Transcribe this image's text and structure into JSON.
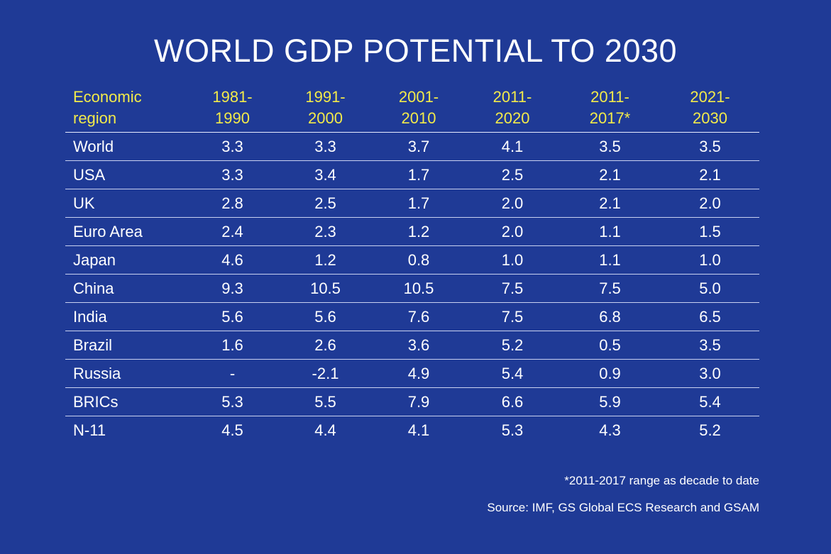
{
  "chart_data": {
    "type": "table",
    "title": "WORLD GDP POTENTIAL TO 2030",
    "columns": [
      {
        "line1": "Economic",
        "line2": "region"
      },
      {
        "line1": "1981-",
        "line2": "1990"
      },
      {
        "line1": "1991-",
        "line2": "2000"
      },
      {
        "line1": "2001-",
        "line2": "2010"
      },
      {
        "line1": "2011-",
        "line2": "2020"
      },
      {
        "line1": "2011-",
        "line2": "2017*"
      },
      {
        "line1": "2021-",
        "line2": "2030"
      }
    ],
    "rows": [
      {
        "region": "World",
        "values": [
          "3.3",
          "3.3",
          "3.7",
          "4.1",
          "3.5",
          "3.5"
        ]
      },
      {
        "region": "USA",
        "values": [
          "3.3",
          "3.4",
          "1.7",
          "2.5",
          "2.1",
          "2.1"
        ]
      },
      {
        "region": "UK",
        "values": [
          "2.8",
          "2.5",
          "1.7",
          "2.0",
          "2.1",
          "2.0"
        ]
      },
      {
        "region": "Euro Area",
        "values": [
          "2.4",
          "2.3",
          "1.2",
          "2.0",
          "1.1",
          "1.5"
        ]
      },
      {
        "region": "Japan",
        "values": [
          "4.6",
          "1.2",
          "0.8",
          "1.0",
          "1.1",
          "1.0"
        ]
      },
      {
        "region": "China",
        "values": [
          "9.3",
          "10.5",
          "10.5",
          "7.5",
          "7.5",
          "5.0"
        ]
      },
      {
        "region": "India",
        "values": [
          "5.6",
          "5.6",
          "7.6",
          "7.5",
          "6.8",
          "6.5"
        ]
      },
      {
        "region": "Brazil",
        "values": [
          "1.6",
          "2.6",
          "3.6",
          "5.2",
          "0.5",
          "3.5"
        ]
      },
      {
        "region": "Russia",
        "values": [
          "-",
          "-2.1",
          "4.9",
          "5.4",
          "0.9",
          "3.0"
        ]
      },
      {
        "region": "BRICs",
        "values": [
          "5.3",
          "5.5",
          "7.9",
          "6.6",
          "5.9",
          "5.4"
        ]
      },
      {
        "region": "N-11",
        "values": [
          "4.5",
          "4.4",
          "4.1",
          "5.3",
          "4.3",
          "5.2"
        ]
      }
    ],
    "footnote": "*2011-2017 range as decade to date",
    "source": "Source: IMF, GS Global ECS Research and GSAM"
  },
  "colors": {
    "background": "#1f3a96",
    "header_text": "#f2ea4a",
    "body_text": "#ffffff"
  }
}
